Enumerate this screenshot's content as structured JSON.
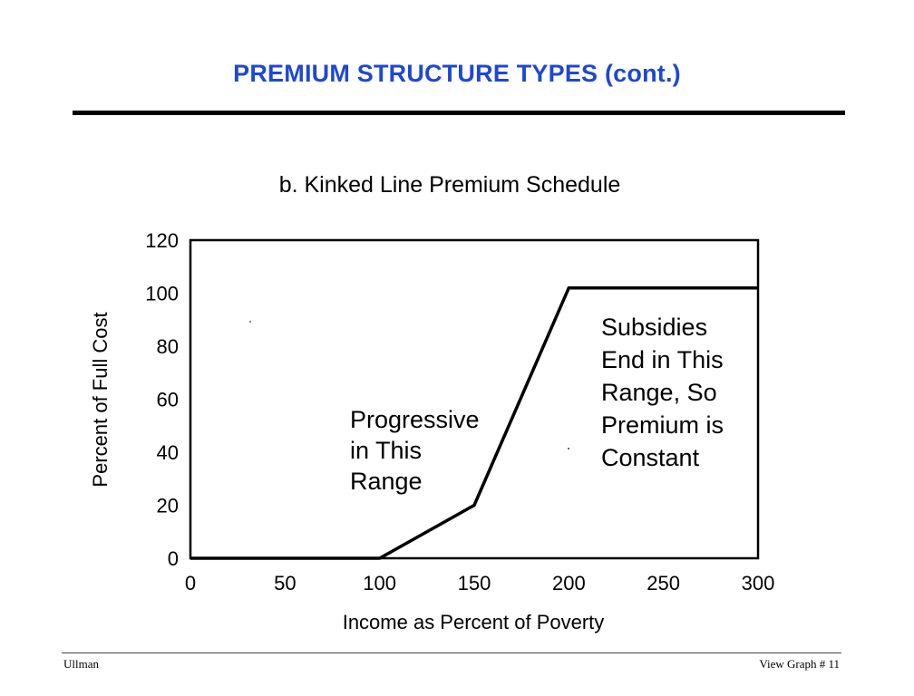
{
  "slide": {
    "title": "PREMIUM STRUCTURE TYPES (cont.)"
  },
  "footer": {
    "left": "Ullman",
    "right": "View Graph # 11"
  },
  "chart_data": {
    "type": "line",
    "title": "b.  Kinked Line Premium Schedule",
    "xlabel": "Income as Percent of Poverty",
    "ylabel": "Percent of Full Cost",
    "xlim": [
      0,
      300
    ],
    "ylim": [
      0,
      120
    ],
    "x_ticks": [
      0,
      50,
      100,
      150,
      200,
      250,
      300
    ],
    "y_ticks": [
      0,
      20,
      40,
      60,
      80,
      100,
      120
    ],
    "grid": false,
    "series": [
      {
        "x": [
          0,
          100,
          150,
          200,
          300
        ],
        "y": [
          0,
          0,
          20,
          102,
          102
        ]
      }
    ],
    "annotations": [
      {
        "id": "progressive",
        "lines": [
          "Progressive",
          "in This",
          "Range"
        ]
      },
      {
        "id": "constant",
        "lines": [
          "Subsidies",
          "End in This",
          "Range, So",
          "Premium is",
          "Constant"
        ]
      }
    ]
  }
}
